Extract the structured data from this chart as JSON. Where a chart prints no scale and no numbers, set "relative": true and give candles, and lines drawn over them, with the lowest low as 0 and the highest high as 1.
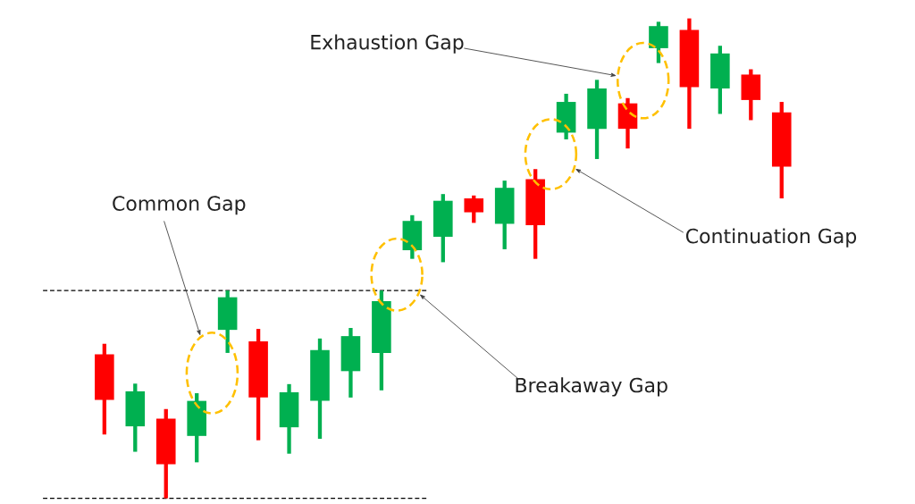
{
  "chart_data": {
    "type": "candlestick",
    "relative": true,
    "categories": [
      null,
      null,
      null,
      null,
      null,
      null,
      null,
      null,
      null,
      null,
      null,
      null,
      null,
      null,
      null,
      null,
      null,
      null,
      null,
      null,
      null,
      null,
      null
    ],
    "ohlc": [
      [
        0.3,
        0.322,
        0.133,
        0.205
      ],
      [
        0.15,
        0.239,
        0.097,
        0.223
      ],
      [
        0.166,
        0.186,
        0.0,
        0.071
      ],
      [
        0.13,
        0.219,
        0.075,
        0.203
      ],
      [
        0.351,
        0.433,
        0.303,
        0.419
      ],
      [
        0.327,
        0.353,
        0.121,
        0.21
      ],
      [
        0.148,
        0.238,
        0.093,
        0.221
      ],
      [
        0.203,
        0.333,
        0.124,
        0.309
      ],
      [
        0.265,
        0.355,
        0.21,
        0.338
      ],
      [
        0.303,
        0.433,
        0.225,
        0.411
      ],
      [
        0.517,
        0.59,
        0.499,
        0.578
      ],
      [
        0.545,
        0.634,
        0.492,
        0.62
      ],
      [
        0.625,
        0.631,
        0.574,
        0.596
      ],
      [
        0.572,
        0.662,
        0.519,
        0.647
      ],
      [
        0.665,
        0.686,
        0.499,
        0.569
      ],
      [
        0.762,
        0.843,
        0.748,
        0.826
      ],
      [
        0.77,
        0.872,
        0.707,
        0.854
      ],
      [
        0.823,
        0.834,
        0.729,
        0.77
      ],
      [
        0.938,
        0.993,
        0.907,
        0.984
      ],
      [
        0.976,
        1.0,
        0.77,
        0.857
      ],
      [
        0.854,
        0.943,
        0.801,
        0.927
      ],
      [
        0.883,
        0.894,
        0.788,
        0.83
      ],
      [
        0.804,
        0.826,
        0.625,
        0.691
      ]
    ],
    "colors": [
      "#ff0000",
      "#00b050",
      "#ff0000",
      "#00b050",
      "#00b050",
      "#ff0000",
      "#00b050",
      "#00b050",
      "#00b050",
      "#00b050",
      "#00b050",
      "#00b050",
      "#ff0000",
      "#00b050",
      "#ff0000",
      "#00b050",
      "#00b050",
      "#ff0000",
      "#00b050",
      "#ff0000",
      "#00b050",
      "#ff0000",
      "#ff0000"
    ],
    "ref_lines": [
      {
        "axis": "y",
        "value": 0.433,
        "color": "#000000",
        "line_style": "dashed"
      },
      {
        "axis": "y",
        "value": 0,
        "color": "#000000",
        "line_style": "dashed"
      }
    ],
    "annotations": [
      "Common Gap",
      "Breakaway Gap",
      "Continuation Gap",
      "Exhaustion Gap"
    ]
  }
}
